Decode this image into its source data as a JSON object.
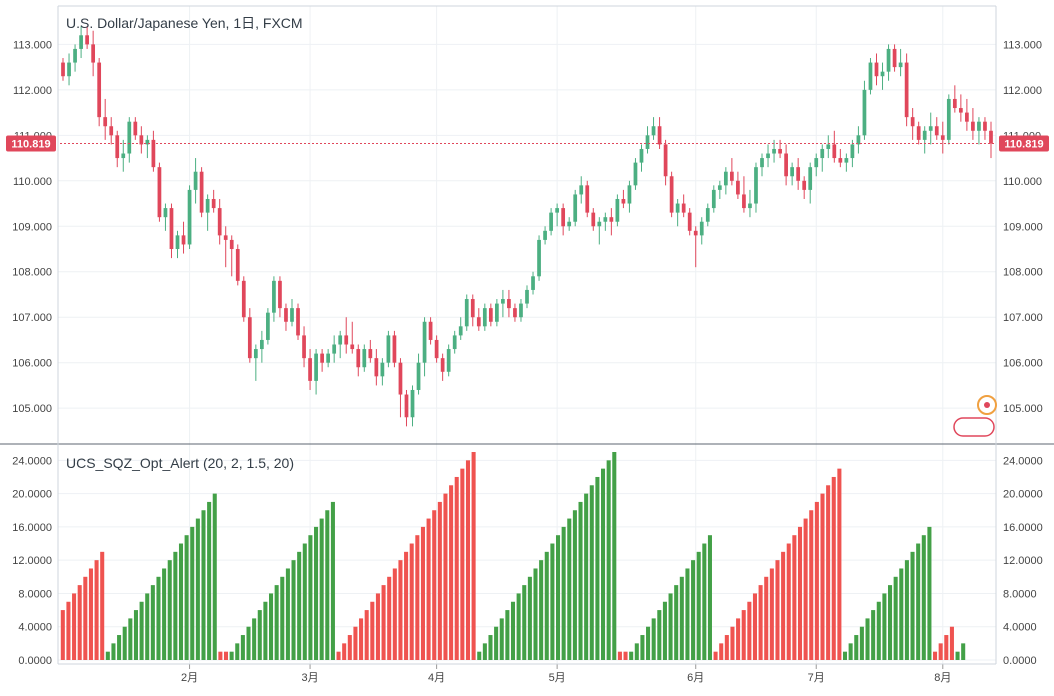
{
  "chart_data": [
    {
      "type": "candlestick",
      "title": "U.S. Dollar/Japanese Yen, 1日, FXCM",
      "current_price": "110.819",
      "ylim": [
        104.3,
        113.8
      ],
      "y_ticks": [
        "105.000",
        "106.000",
        "107.000",
        "108.000",
        "109.000",
        "110.000",
        "111.000",
        "112.000",
        "113.000"
      ],
      "y_tick_values": [
        105,
        106,
        107,
        108,
        109,
        110,
        111,
        112,
        113
      ],
      "x_ticks": [
        {
          "label": "2月",
          "index": 21
        },
        {
          "label": "3月",
          "index": 41
        },
        {
          "label": "4月",
          "index": 62
        },
        {
          "label": "5月",
          "index": 82
        },
        {
          "label": "6月",
          "index": 105
        },
        {
          "label": "7月",
          "index": 125
        },
        {
          "label": "8月",
          "index": 146
        }
      ],
      "candles_ohlc": [
        [
          112.6,
          112.7,
          112.2,
          112.3
        ],
        [
          112.3,
          112.8,
          112.1,
          112.6
        ],
        [
          112.6,
          113.0,
          112.4,
          112.9
        ],
        [
          112.9,
          113.4,
          112.7,
          113.2
        ],
        [
          113.2,
          113.4,
          112.9,
          113.0
        ],
        [
          113.0,
          113.3,
          112.3,
          112.6
        ],
        [
          112.6,
          112.7,
          111.2,
          111.4
        ],
        [
          111.4,
          111.8,
          110.9,
          111.2
        ],
        [
          111.2,
          111.4,
          110.8,
          111.0
        ],
        [
          111.0,
          111.1,
          110.3,
          110.5
        ],
        [
          110.5,
          110.9,
          110.2,
          110.6
        ],
        [
          110.6,
          111.4,
          110.4,
          111.3
        ],
        [
          111.3,
          111.4,
          110.9,
          111.0
        ],
        [
          111.0,
          111.2,
          110.6,
          110.8
        ],
        [
          110.8,
          111.0,
          110.5,
          110.9
        ],
        [
          110.9,
          111.1,
          110.2,
          110.3
        ],
        [
          110.3,
          110.4,
          109.1,
          109.2
        ],
        [
          109.2,
          109.5,
          108.9,
          109.4
        ],
        [
          109.4,
          109.5,
          108.3,
          108.5
        ],
        [
          108.5,
          108.9,
          108.3,
          108.8
        ],
        [
          108.8,
          109.1,
          108.4,
          108.6
        ],
        [
          108.6,
          109.9,
          108.5,
          109.8
        ],
        [
          109.8,
          110.5,
          109.5,
          110.2
        ],
        [
          110.2,
          110.3,
          109.2,
          109.3
        ],
        [
          109.3,
          109.7,
          108.9,
          109.6
        ],
        [
          109.6,
          109.8,
          109.3,
          109.4
        ],
        [
          109.4,
          109.6,
          108.6,
          108.8
        ],
        [
          108.8,
          109.0,
          108.1,
          108.7
        ],
        [
          108.7,
          108.8,
          107.9,
          108.5
        ],
        [
          108.5,
          108.6,
          107.7,
          107.8
        ],
        [
          107.8,
          107.9,
          106.9,
          107.0
        ],
        [
          107.0,
          107.2,
          106.0,
          106.1
        ],
        [
          106.1,
          106.4,
          105.6,
          106.3
        ],
        [
          106.3,
          106.7,
          106.0,
          106.5
        ],
        [
          106.5,
          107.2,
          106.4,
          107.1
        ],
        [
          107.1,
          107.9,
          106.9,
          107.8
        ],
        [
          107.8,
          107.9,
          107.0,
          107.2
        ],
        [
          107.2,
          107.3,
          106.7,
          106.9
        ],
        [
          106.9,
          107.4,
          106.8,
          107.2
        ],
        [
          107.2,
          107.3,
          106.5,
          106.6
        ],
        [
          106.6,
          106.8,
          105.9,
          106.1
        ],
        [
          106.1,
          106.3,
          105.4,
          105.6
        ],
        [
          105.6,
          106.3,
          105.3,
          106.2
        ],
        [
          106.2,
          106.3,
          105.8,
          106.0
        ],
        [
          106.0,
          106.3,
          105.9,
          106.2
        ],
        [
          106.2,
          106.6,
          106.0,
          106.4
        ],
        [
          106.4,
          106.7,
          106.1,
          106.6
        ],
        [
          106.6,
          107.0,
          106.2,
          106.4
        ],
        [
          106.4,
          106.9,
          106.2,
          106.3
        ],
        [
          106.3,
          106.4,
          105.7,
          105.9
        ],
        [
          105.9,
          106.4,
          105.8,
          106.3
        ],
        [
          106.3,
          106.5,
          106.0,
          106.1
        ],
        [
          106.1,
          106.3,
          105.5,
          105.7
        ],
        [
          105.7,
          106.1,
          105.5,
          106.0
        ],
        [
          106.0,
          106.7,
          105.9,
          106.6
        ],
        [
          106.6,
          106.7,
          105.9,
          106.0
        ],
        [
          106.0,
          106.1,
          104.8,
          105.3
        ],
        [
          105.3,
          105.4,
          104.6,
          104.8
        ],
        [
          104.8,
          105.5,
          104.6,
          105.4
        ],
        [
          105.4,
          106.2,
          105.3,
          106.0
        ],
        [
          106.0,
          107.0,
          105.7,
          106.9
        ],
        [
          106.9,
          107.0,
          106.4,
          106.5
        ],
        [
          106.5,
          106.6,
          106.0,
          106.1
        ],
        [
          106.1,
          106.2,
          105.6,
          105.8
        ],
        [
          105.8,
          106.4,
          105.7,
          106.3
        ],
        [
          106.3,
          106.7,
          106.2,
          106.6
        ],
        [
          106.6,
          107.0,
          106.5,
          106.8
        ],
        [
          106.8,
          107.5,
          106.7,
          107.4
        ],
        [
          107.4,
          107.5,
          106.8,
          107.0
        ],
        [
          107.0,
          107.2,
          106.7,
          106.8
        ],
        [
          106.8,
          107.3,
          106.7,
          107.2
        ],
        [
          107.2,
          107.3,
          106.8,
          106.9
        ],
        [
          106.9,
          107.4,
          106.8,
          107.3
        ],
        [
          107.3,
          107.6,
          107.0,
          107.4
        ],
        [
          107.4,
          107.6,
          107.0,
          107.2
        ],
        [
          107.2,
          107.3,
          106.9,
          107.0
        ],
        [
          107.0,
          107.4,
          106.9,
          107.3
        ],
        [
          107.3,
          107.7,
          107.2,
          107.6
        ],
        [
          107.6,
          108.0,
          107.5,
          107.9
        ],
        [
          107.9,
          108.8,
          107.8,
          108.7
        ],
        [
          108.7,
          109.0,
          108.6,
          108.9
        ],
        [
          108.9,
          109.4,
          108.8,
          109.3
        ],
        [
          109.3,
          109.5,
          109.0,
          109.4
        ],
        [
          109.4,
          109.5,
          108.8,
          109.0
        ],
        [
          109.0,
          109.2,
          108.9,
          109.1
        ],
        [
          109.1,
          109.8,
          109.0,
          109.7
        ],
        [
          109.7,
          110.1,
          109.5,
          109.9
        ],
        [
          109.9,
          110.0,
          109.2,
          109.3
        ],
        [
          109.3,
          109.4,
          108.9,
          109.0
        ],
        [
          109.0,
          109.2,
          108.6,
          109.1
        ],
        [
          109.1,
          109.3,
          108.9,
          109.2
        ],
        [
          109.2,
          109.4,
          108.8,
          109.1
        ],
        [
          109.1,
          109.7,
          109.0,
          109.6
        ],
        [
          109.6,
          109.8,
          109.4,
          109.5
        ],
        [
          109.5,
          110.0,
          109.3,
          109.9
        ],
        [
          109.9,
          110.5,
          109.8,
          110.4
        ],
        [
          110.4,
          110.8,
          110.2,
          110.7
        ],
        [
          110.7,
          111.2,
          110.6,
          111.0
        ],
        [
          111.0,
          111.4,
          110.9,
          111.2
        ],
        [
          111.2,
          111.4,
          110.7,
          110.8
        ],
        [
          110.8,
          110.9,
          109.9,
          110.1
        ],
        [
          110.1,
          110.2,
          109.2,
          109.3
        ],
        [
          109.3,
          109.6,
          109.0,
          109.5
        ],
        [
          109.5,
          109.7,
          109.2,
          109.3
        ],
        [
          109.3,
          109.4,
          108.8,
          108.9
        ],
        [
          108.9,
          109.0,
          108.1,
          108.8
        ],
        [
          108.8,
          109.2,
          108.6,
          109.1
        ],
        [
          109.1,
          109.5,
          109.0,
          109.4
        ],
        [
          109.4,
          109.9,
          109.3,
          109.8
        ],
        [
          109.8,
          110.0,
          109.6,
          109.9
        ],
        [
          109.9,
          110.3,
          109.7,
          110.2
        ],
        [
          110.2,
          110.5,
          109.9,
          110.0
        ],
        [
          110.0,
          110.2,
          109.6,
          109.7
        ],
        [
          109.7,
          110.1,
          109.3,
          109.4
        ],
        [
          109.4,
          109.8,
          109.2,
          109.5
        ],
        [
          109.5,
          110.4,
          109.3,
          110.3
        ],
        [
          110.3,
          110.6,
          110.1,
          110.5
        ],
        [
          110.5,
          110.8,
          110.3,
          110.6
        ],
        [
          110.6,
          110.9,
          110.4,
          110.7
        ],
        [
          110.7,
          110.9,
          110.5,
          110.6
        ],
        [
          110.6,
          110.8,
          109.9,
          110.1
        ],
        [
          110.1,
          110.4,
          109.9,
          110.3
        ],
        [
          110.3,
          110.5,
          109.8,
          110.0
        ],
        [
          110.0,
          110.1,
          109.6,
          109.8
        ],
        [
          109.8,
          110.4,
          109.5,
          110.3
        ],
        [
          110.3,
          110.6,
          110.1,
          110.5
        ],
        [
          110.5,
          110.8,
          110.2,
          110.7
        ],
        [
          110.7,
          111.0,
          110.5,
          110.8
        ],
        [
          110.8,
          111.1,
          110.4,
          110.5
        ],
        [
          110.5,
          110.7,
          110.3,
          110.4
        ],
        [
          110.4,
          110.6,
          110.2,
          110.5
        ],
        [
          110.5,
          110.9,
          110.3,
          110.8
        ],
        [
          110.8,
          111.2,
          110.6,
          111.0
        ],
        [
          111.0,
          112.2,
          110.9,
          112.0
        ],
        [
          112.0,
          112.7,
          111.9,
          112.6
        ],
        [
          112.6,
          112.8,
          112.1,
          112.3
        ],
        [
          112.3,
          112.6,
          112.0,
          112.4
        ],
        [
          112.4,
          113.0,
          112.2,
          112.9
        ],
        [
          112.9,
          113.0,
          112.4,
          112.5
        ],
        [
          112.5,
          112.9,
          112.3,
          112.6
        ],
        [
          112.6,
          112.8,
          111.2,
          111.4
        ],
        [
          111.4,
          111.6,
          110.9,
          111.2
        ],
        [
          111.2,
          111.3,
          110.8,
          110.9
        ],
        [
          110.9,
          111.2,
          110.6,
          111.1
        ],
        [
          111.1,
          111.5,
          110.8,
          111.2
        ],
        [
          111.2,
          111.4,
          110.9,
          111.0
        ],
        [
          111.0,
          111.3,
          110.6,
          110.9
        ],
        [
          110.9,
          111.9,
          110.8,
          111.8
        ],
        [
          111.8,
          112.1,
          111.5,
          111.6
        ],
        [
          111.6,
          111.9,
          111.3,
          111.5
        ],
        [
          111.5,
          111.8,
          111.1,
          111.3
        ],
        [
          111.3,
          111.6,
          110.9,
          111.1
        ],
        [
          111.1,
          111.4,
          110.8,
          111.3
        ],
        [
          111.3,
          111.4,
          110.9,
          111.1
        ],
        [
          111.1,
          111.3,
          110.5,
          110.82
        ]
      ]
    },
    {
      "type": "bar",
      "title": "UCS_SQZ_Opt_Alert (20, 2, 1.5, 20)",
      "ylim": [
        0,
        25
      ],
      "y_ticks": [
        "0.0000",
        "4.0000",
        "8.0000",
        "12.0000",
        "16.0000",
        "20.0000",
        "24.0000"
      ],
      "y_tick_values": [
        0,
        4,
        8,
        12,
        16,
        20,
        24
      ],
      "colors": {
        "red": "#ef5350",
        "green": "#43a047"
      },
      "segments": [
        {
          "color": "red",
          "values": [
            6,
            7,
            8,
            9,
            10,
            11,
            12,
            13
          ]
        },
        {
          "color": "green",
          "values": [
            1,
            2,
            3,
            4,
            5,
            6,
            7,
            8,
            9,
            10,
            11,
            12,
            13,
            14,
            15,
            16,
            17,
            18,
            19,
            20
          ]
        },
        {
          "color": "red",
          "values": [
            1,
            1
          ]
        },
        {
          "color": "green",
          "values": [
            1,
            2,
            3,
            4,
            5,
            6,
            7,
            8,
            9,
            10,
            11,
            12,
            13,
            14,
            15,
            16,
            17,
            18,
            19
          ]
        },
        {
          "color": "red",
          "values": [
            1,
            2,
            3,
            4,
            5,
            6,
            7,
            8,
            9,
            10,
            11,
            12,
            13,
            14,
            15,
            16,
            17,
            18,
            19,
            20,
            21,
            22,
            23,
            24,
            25
          ]
        },
        {
          "color": "green",
          "values": [
            1,
            2,
            3,
            4,
            5,
            6,
            7,
            8,
            9,
            10,
            11,
            12,
            13,
            14,
            15,
            16,
            17,
            18,
            19,
            20,
            21,
            22,
            23,
            24,
            25
          ]
        },
        {
          "color": "red",
          "values": [
            1,
            1
          ]
        },
        {
          "color": "green",
          "values": [
            1,
            2,
            3,
            4,
            5,
            6,
            7,
            8,
            9,
            10,
            11,
            12,
            13,
            14,
            15
          ]
        },
        {
          "color": "red",
          "values": [
            1,
            2,
            3,
            4,
            5,
            6,
            7,
            8,
            9,
            10,
            11,
            12,
            13,
            14,
            15,
            16,
            17,
            18,
            19,
            20,
            21,
            22,
            23
          ]
        },
        {
          "color": "green",
          "values": [
            1,
            2,
            3,
            4,
            5,
            6,
            7,
            8,
            9,
            10,
            11,
            12,
            13,
            14,
            15,
            16
          ]
        },
        {
          "color": "red",
          "values": [
            1,
            2,
            3,
            4
          ]
        },
        {
          "color": "green",
          "values": [
            1,
            2
          ]
        }
      ]
    }
  ],
  "colors": {
    "up": "#4caf82",
    "down": "#e0475b",
    "price_tag": "#e0475b"
  }
}
